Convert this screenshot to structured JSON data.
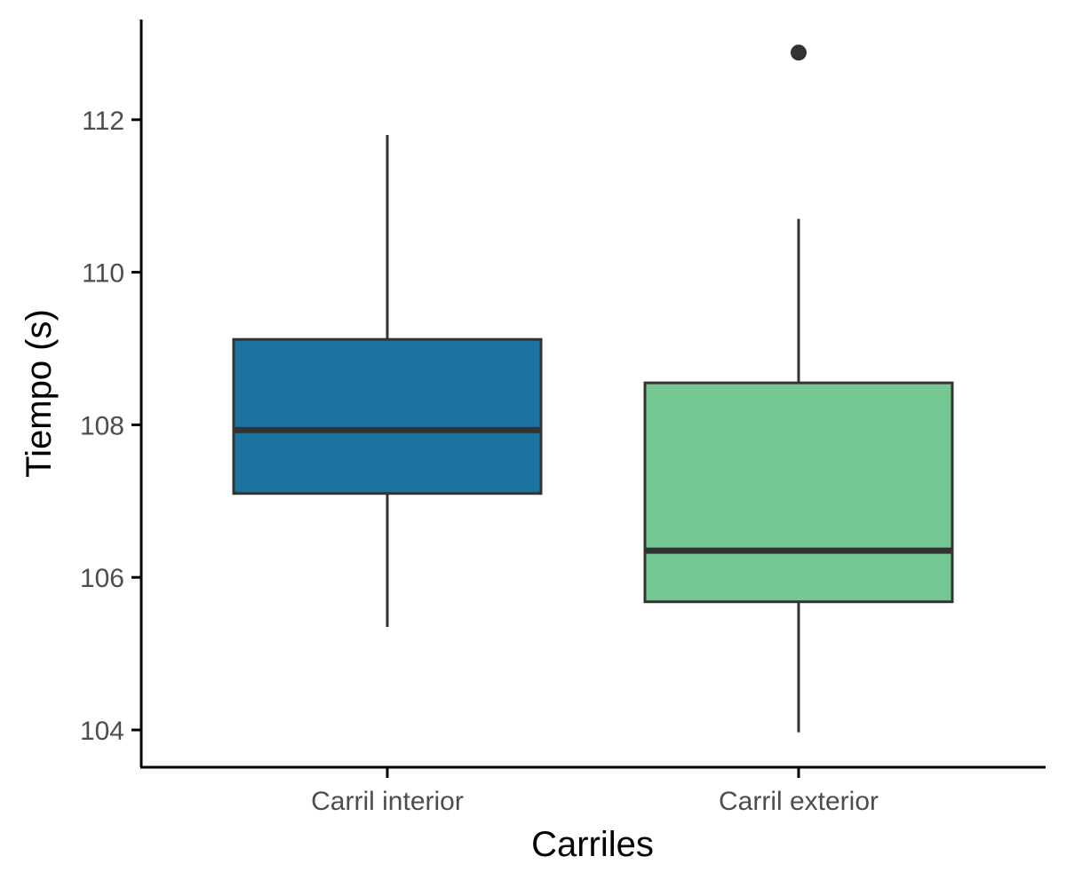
{
  "chart_data": {
    "type": "box",
    "xlabel": "Carriles",
    "ylabel": "Tiempo (s)",
    "ylim": [
      103.5,
      113.4
    ],
    "yticks": [
      104,
      106,
      108,
      110,
      112
    ],
    "grid": false,
    "legend": "none",
    "categories": [
      "Carril interior",
      "Carril exterior"
    ],
    "boxes": [
      {
        "category": "Carril interior",
        "whisker_low": 105.35,
        "q1": 107.1,
        "median": 107.93,
        "q3": 109.12,
        "whisker_high": 111.8,
        "outliers": [],
        "fill": "#1b749f"
      },
      {
        "category": "Carril exterior",
        "whisker_low": 103.97,
        "q1": 105.68,
        "median": 106.35,
        "q3": 108.55,
        "whisker_high": 110.7,
        "outliers": [
          112.88
        ],
        "fill": "#76c893"
      }
    ],
    "colors": {
      "stroke": "#333333",
      "axis": "#000000"
    }
  }
}
